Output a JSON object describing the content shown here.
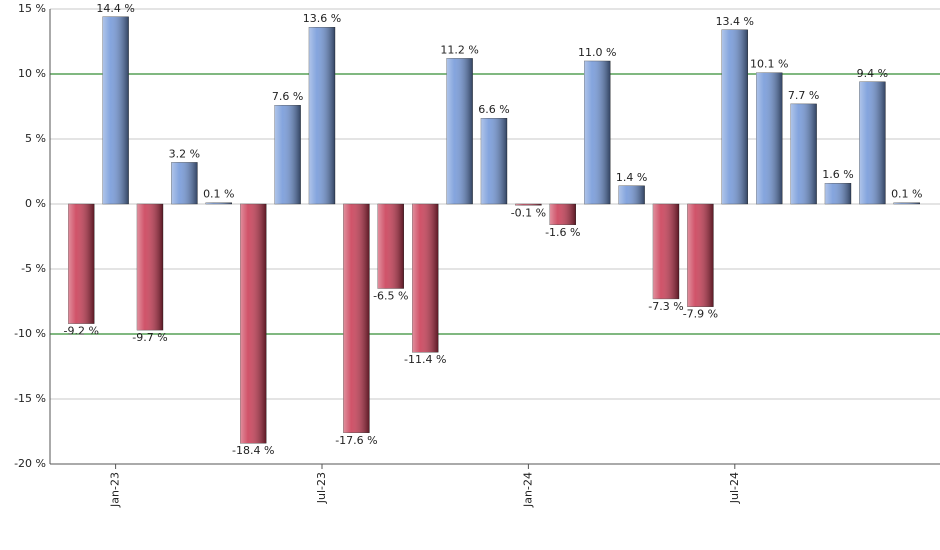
{
  "chart_data": {
    "type": "bar",
    "categories": [
      null,
      "Jan-23",
      null,
      null,
      null,
      null,
      null,
      "Jul-23",
      null,
      null,
      null,
      null,
      null,
      "Jan-24",
      null,
      null,
      null,
      null,
      null,
      "Jul-24",
      null,
      null,
      null,
      null,
      null
    ],
    "values": [
      -9.2,
      14.4,
      -9.7,
      3.2,
      0.1,
      -18.4,
      7.6,
      13.6,
      -17.6,
      -6.5,
      -11.4,
      11.2,
      6.6,
      -0.1,
      -1.6,
      11.0,
      1.4,
      -7.3,
      -7.9,
      13.4,
      10.1,
      7.7,
      1.6,
      9.4,
      0.1
    ],
    "value_labels": [
      "-9.2 %",
      "14.4 %",
      "-9.7 %",
      "3.2 %",
      "0.1 %",
      "-18.4 %",
      "7.6 %",
      "13.6 %",
      "-17.6 %",
      "-6.5 %",
      "-11.4 %",
      "11.2 %",
      "6.6 %",
      "-0.1 %",
      "-1.6 %",
      "11.0 %",
      "1.4 %",
      "-7.3 %",
      "-7.9 %",
      "13.4 %",
      "10.1 %",
      "7.7 %",
      "1.6 %",
      "9.4 %",
      "0.1 %"
    ],
    "positive_color": "#6f95d8",
    "negative_color": "#c8354f",
    "ylim": [
      -20,
      15
    ],
    "yticks": [
      {
        "value": -20,
        "label": "-20 %"
      },
      {
        "value": -15,
        "label": "-15 %"
      },
      {
        "value": -10,
        "label": "-10 %"
      },
      {
        "value": -5,
        "label": "-5 %"
      },
      {
        "value": 0,
        "label": "0 %"
      },
      {
        "value": 5,
        "label": "5 %"
      },
      {
        "value": 10,
        "label": "10 %"
      },
      {
        "value": 15,
        "label": "15 %"
      }
    ],
    "grid": true,
    "reference_lines": [
      10,
      -10
    ],
    "reference_color": "#007000"
  }
}
